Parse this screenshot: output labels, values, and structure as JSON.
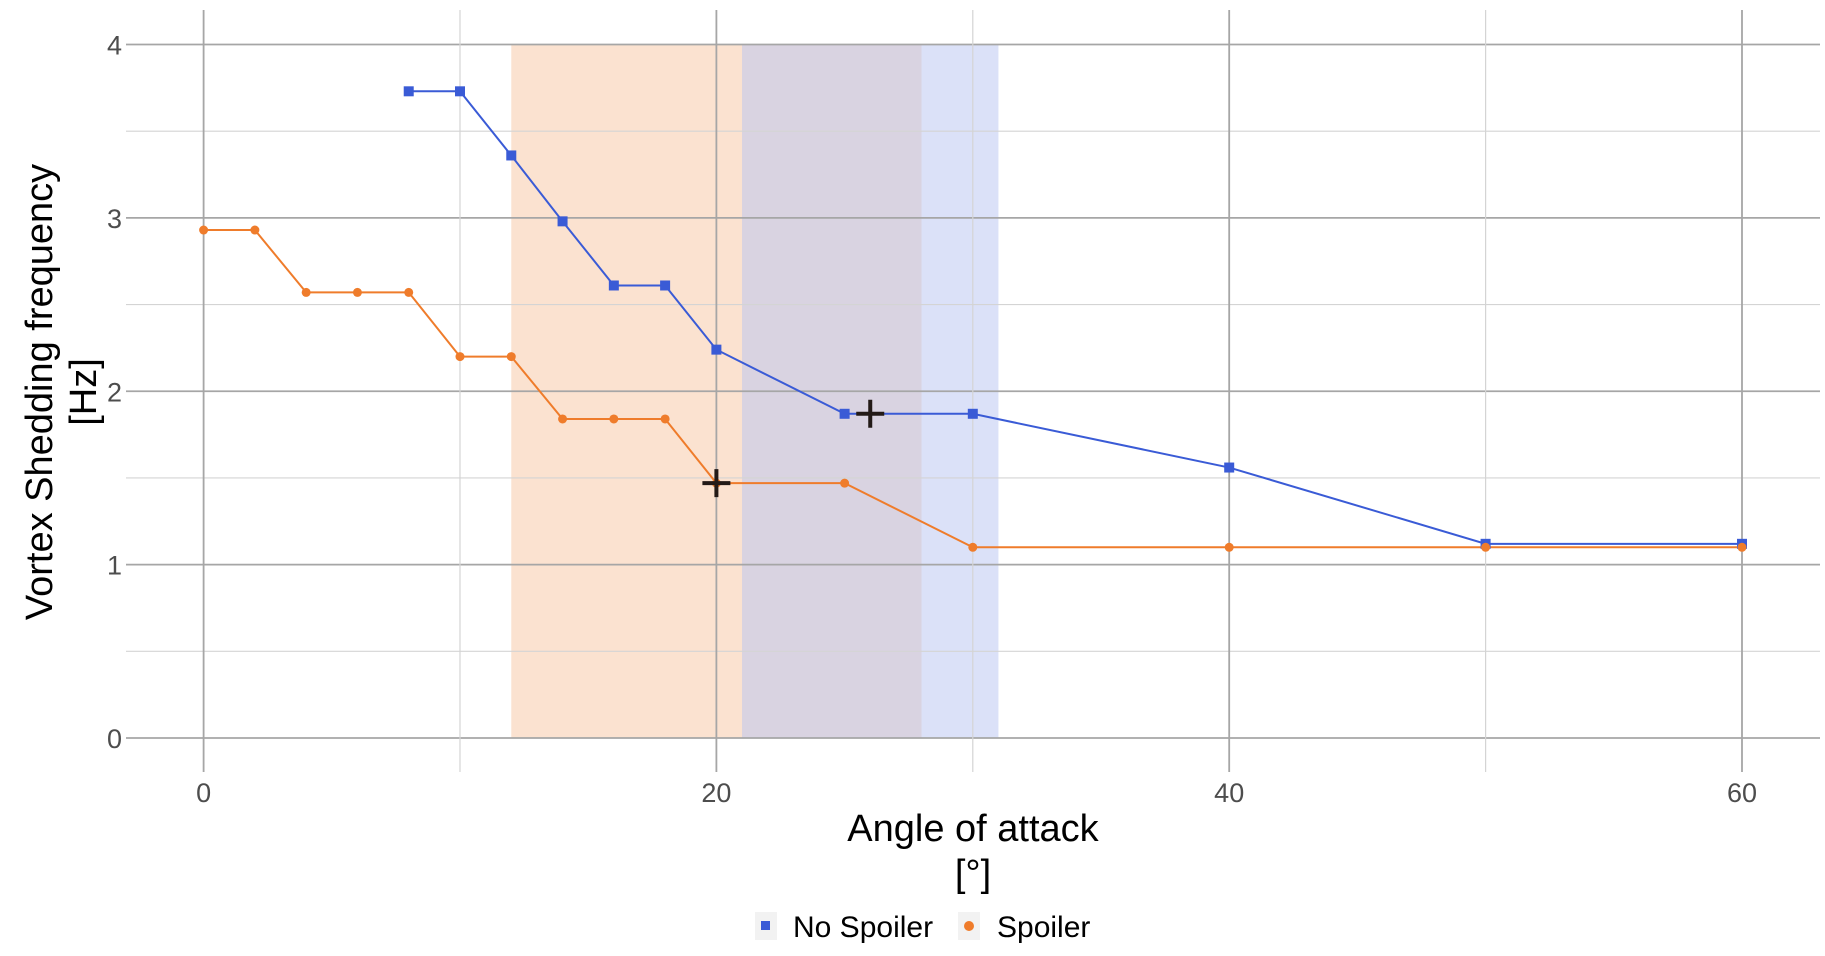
{
  "chart_data": {
    "type": "line",
    "title": "",
    "xlabel": "Angle of attack",
    "xlabel_unit": "[°]",
    "ylabel": "Vortex Shedding frequency",
    "ylabel_unit": "[Hz]",
    "xlim": [
      -3,
      62.5
    ],
    "ylim": [
      -0.2,
      4.2
    ],
    "x_ticks": [
      0,
      20,
      40,
      60
    ],
    "x_tick_labels": [
      "0",
      "20",
      "40",
      "60"
    ],
    "y_ticks": [
      0,
      1,
      2,
      3,
      4
    ],
    "y_tick_labels": [
      "0",
      "1",
      "2",
      "3",
      "4"
    ],
    "grid": true,
    "legend_position": "bottom",
    "shaded_regions": [
      {
        "series": "Spoiler",
        "x": [
          12,
          28
        ],
        "color": "#f8cba9"
      },
      {
        "series": "No Spoiler",
        "x": [
          21,
          31
        ],
        "color": "#b7c3f2"
      }
    ],
    "series": [
      {
        "name": "No Spoiler",
        "color": "#3a5bd6",
        "marker": "square",
        "x": [
          8,
          10,
          12,
          14,
          16,
          18,
          20,
          25,
          30,
          40,
          50,
          60
        ],
        "y": [
          3.73,
          3.73,
          3.36,
          2.98,
          2.61,
          2.61,
          2.24,
          1.87,
          1.87,
          1.56,
          1.12,
          1.12
        ]
      },
      {
        "name": "Spoiler",
        "color": "#ef7c2b",
        "marker": "circle",
        "x": [
          0,
          2,
          4,
          6,
          8,
          10,
          12,
          14,
          16,
          18,
          20,
          25,
          30,
          40,
          50,
          60
        ],
        "y": [
          2.93,
          2.93,
          2.57,
          2.57,
          2.57,
          2.2,
          2.2,
          1.84,
          1.84,
          1.84,
          1.47,
          1.47,
          1.1,
          1.1,
          1.1,
          1.1
        ]
      }
    ],
    "markers": [
      {
        "series": "No Spoiler",
        "x": 26,
        "y": 1.87,
        "shape": "cross"
      },
      {
        "series": "Spoiler",
        "x": 20,
        "y": 1.47,
        "shape": "cross"
      }
    ]
  }
}
